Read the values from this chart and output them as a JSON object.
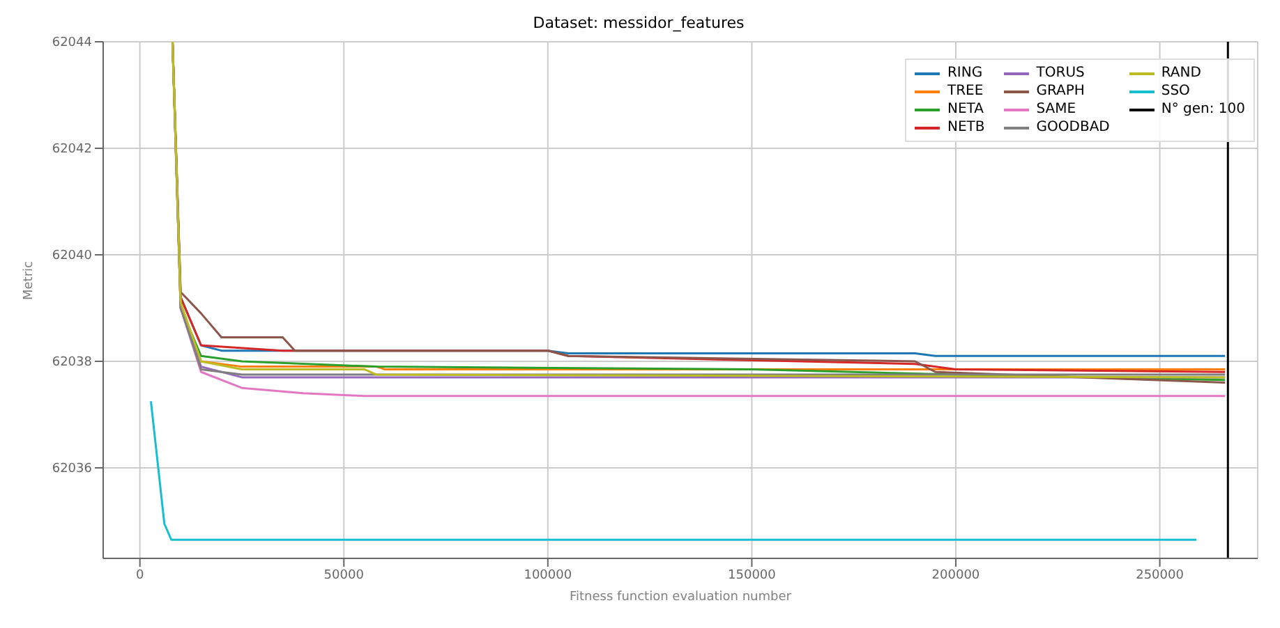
{
  "chart_data": {
    "type": "line",
    "title": "Dataset: messidor_features",
    "xlabel": "Fitness function evaluation number",
    "ylabel": "Metric",
    "xlim": [
      -9000,
      274000
    ],
    "xticks": [
      0,
      50000,
      100000,
      150000,
      200000,
      250000
    ],
    "ylim": [
      62034.3,
      62044
    ],
    "yticks": [
      62036,
      62038,
      62040,
      62042,
      62044
    ],
    "grid": true,
    "legend": "top right",
    "marker": "none",
    "line_style": "solid",
    "series": [
      {
        "name": "RING",
        "color": "#1f77b4",
        "x": [
          8000,
          10000,
          15000,
          20000,
          100000,
          105000,
          190000,
          195000,
          266000
        ],
        "values": [
          62044,
          62039.2,
          62038.3,
          62038.2,
          62038.2,
          62038.15,
          62038.15,
          62038.1,
          62038.1
        ]
      },
      {
        "name": "TREE",
        "color": "#ff7f0e",
        "x": [
          8000,
          10000,
          15000,
          25000,
          58000,
          60000,
          266000
        ],
        "values": [
          62044,
          62039,
          62038,
          62037.9,
          62037.9,
          62037.85,
          62037.85
        ]
      },
      {
        "name": "NETA",
        "color": "#2ca02c",
        "x": [
          8000,
          10000,
          15000,
          25000,
          58000,
          150000,
          200000,
          266000
        ],
        "values": [
          62044,
          62039,
          62038.1,
          62038,
          62037.9,
          62037.85,
          62037.75,
          62037.65
        ]
      },
      {
        "name": "NETB",
        "color": "#d62728",
        "x": [
          8000,
          10000,
          15000,
          35000,
          100000,
          105000,
          190000,
          200000,
          266000
        ],
        "values": [
          62044,
          62039.2,
          62038.3,
          62038.2,
          62038.2,
          62038.1,
          62037.95,
          62037.85,
          62037.8
        ]
      },
      {
        "name": "TORUS",
        "color": "#9467bd",
        "x": [
          8000,
          10000,
          15000,
          25000,
          266000
        ],
        "values": [
          62044,
          62039,
          62037.9,
          62037.7,
          62037.7
        ]
      },
      {
        "name": "GRAPH",
        "color": "#8c564b",
        "x": [
          8000,
          10000,
          15000,
          20000,
          35000,
          38000,
          100000,
          105000,
          190000,
          195000,
          266000
        ],
        "values": [
          62044,
          62039.3,
          62038.9,
          62038.45,
          62038.45,
          62038.2,
          62038.2,
          62038.1,
          62038,
          62037.8,
          62037.6
        ]
      },
      {
        "name": "SAME",
        "color": "#e377c2",
        "x": [
          8000,
          10000,
          15000,
          25000,
          40000,
          55000,
          266000
        ],
        "values": [
          62044,
          62039,
          62037.8,
          62037.5,
          62037.4,
          62037.35,
          62037.35
        ]
      },
      {
        "name": "GOODBAD",
        "color": "#7f7f7f",
        "x": [
          8000,
          10000,
          15000,
          25000,
          266000
        ],
        "values": [
          62044,
          62039,
          62037.85,
          62037.75,
          62037.75
        ]
      },
      {
        "name": "RAND",
        "color": "#bcbd22",
        "x": [
          8000,
          10000,
          15000,
          25000,
          55000,
          58000,
          266000
        ],
        "values": [
          62044,
          62039.1,
          62038,
          62037.85,
          62037.85,
          62037.75,
          62037.7
        ]
      },
      {
        "name": "SSO",
        "color": "#17becf",
        "x": [
          2700,
          6000,
          7700,
          259000
        ],
        "values": [
          62037.25,
          62034.95,
          62034.65,
          62034.65
        ]
      },
      {
        "name": "N° gen: 100",
        "color": "#000000",
        "x": [
          266700,
          266700
        ],
        "values": [
          62034.3,
          62044
        ]
      }
    ]
  }
}
